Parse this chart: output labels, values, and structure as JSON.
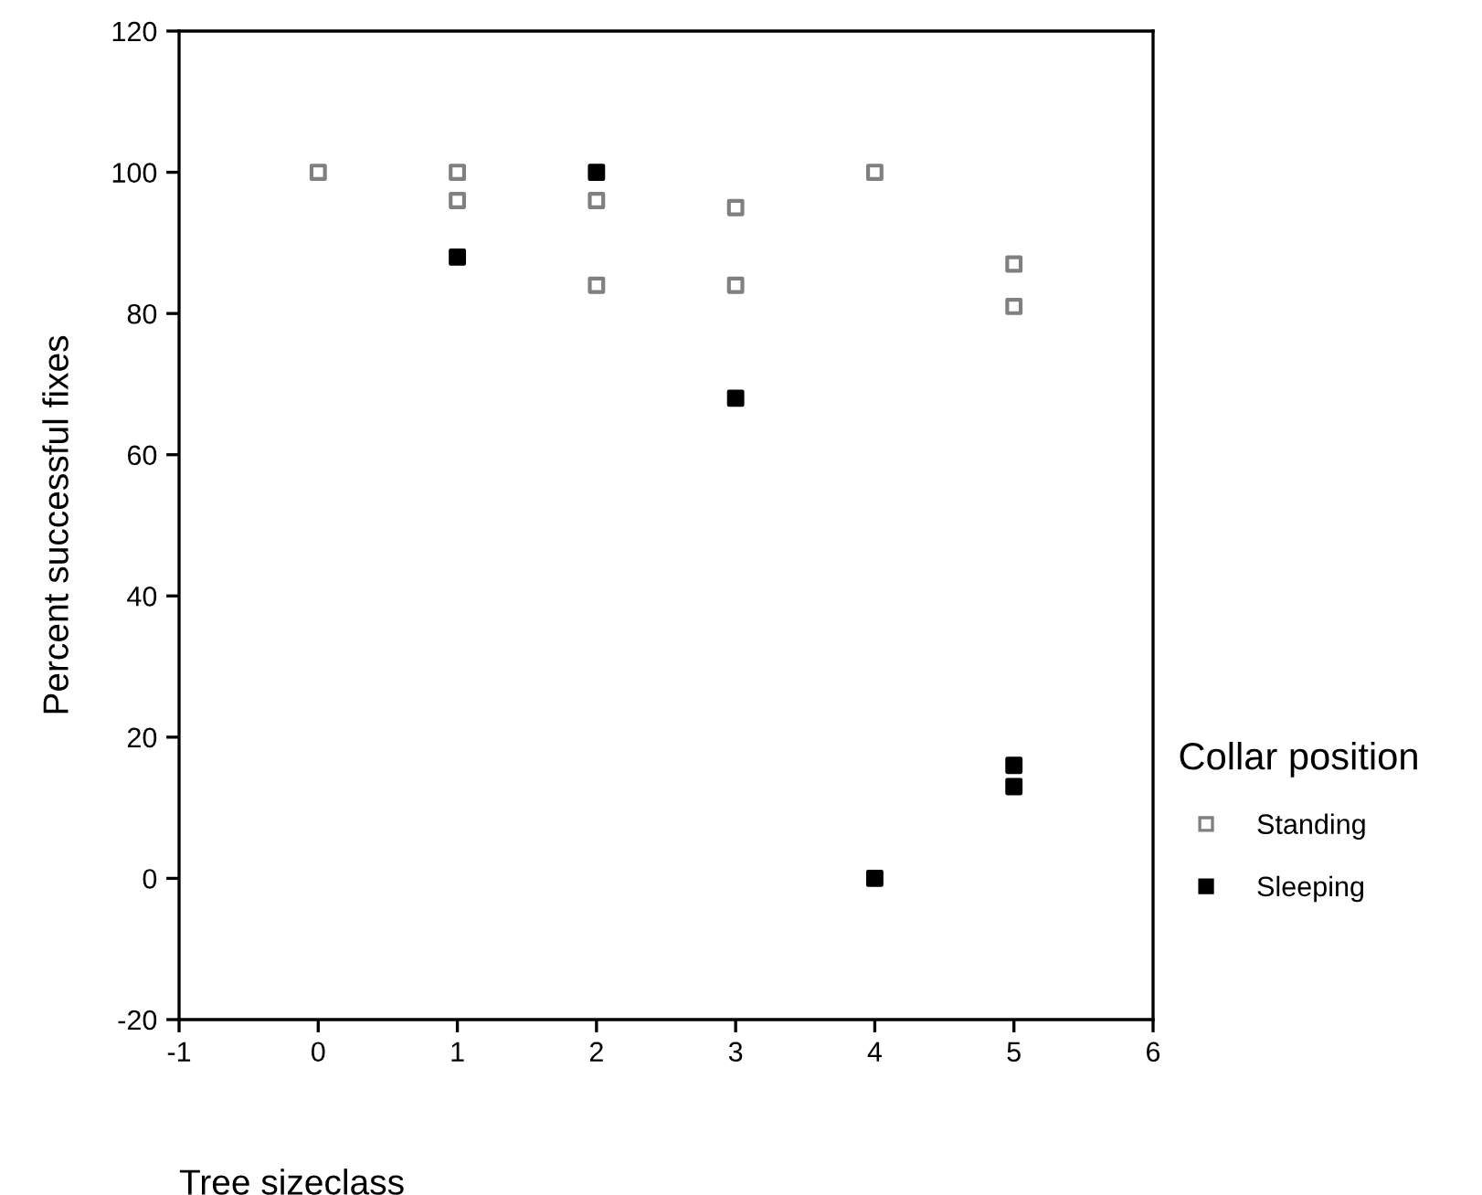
{
  "chart_data": {
    "type": "scatter",
    "xlabel": "Tree sizeclass",
    "ylabel": "Percent successful fixes",
    "legend_title": "Collar position",
    "xlim": [
      -1,
      6
    ],
    "xticks": [
      -1,
      0,
      1,
      2,
      3,
      4,
      5,
      6
    ],
    "ylim": [
      -20,
      120
    ],
    "yticks": [
      -20,
      0,
      20,
      40,
      60,
      80,
      100,
      120
    ],
    "marker": "square",
    "grid": false,
    "legend": "right",
    "series": [
      {
        "name": "Standing",
        "color": "#808080",
        "x": [
          0,
          1,
          1,
          2,
          2,
          3,
          3,
          4,
          5,
          5
        ],
        "values": [
          100,
          100,
          96,
          96,
          84,
          95,
          84,
          100,
          87,
          81
        ]
      },
      {
        "name": "Sleeping",
        "color": "#000000",
        "x": [
          1,
          2,
          3,
          4,
          5,
          5
        ],
        "values": [
          88,
          100,
          68,
          0,
          16,
          13
        ]
      }
    ]
  }
}
